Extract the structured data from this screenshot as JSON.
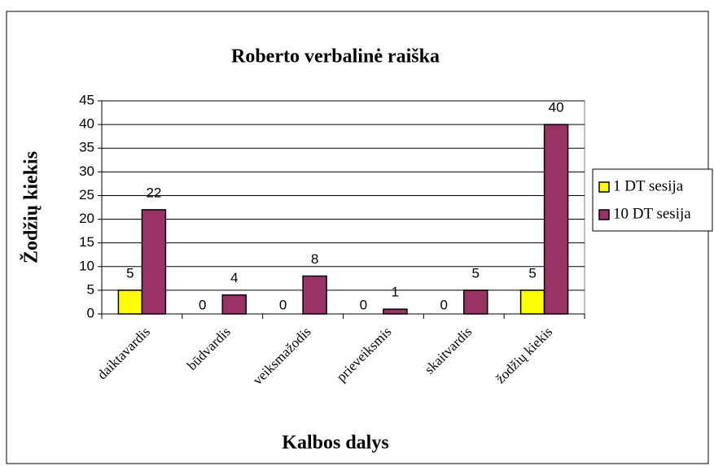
{
  "chart_data": {
    "type": "bar",
    "title": "Roberto verbalinė raiška",
    "y_label": "Žodžių kiekis",
    "x_label": "Kalbos dalys",
    "categories": [
      "daiktavardis",
      "būdvardis",
      "veiksmažodis",
      "prieveiksmis",
      "skaitvardis",
      "žodžių kiekis"
    ],
    "series": [
      {
        "name": "1 DT sesija",
        "color": "#ffff00",
        "values": [
          5,
          0,
          0,
          0,
          0,
          5
        ]
      },
      {
        "name": "10 DT sesija",
        "color": "#993366",
        "values": [
          22,
          4,
          8,
          1,
          5,
          40
        ]
      }
    ],
    "ylim": [
      0,
      45
    ],
    "yticks": [
      0,
      5,
      10,
      15,
      20,
      25,
      30,
      35,
      40,
      45
    ],
    "grid": true,
    "legend": "right"
  }
}
